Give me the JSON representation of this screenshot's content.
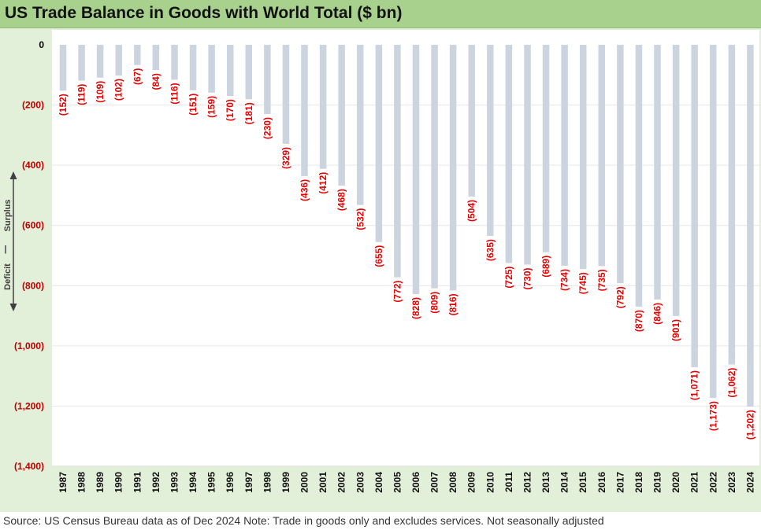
{
  "title": "US Trade Balance in Goods with World Total ($ bn)",
  "source": "Source: US Census Bureau data as of Dec 2024 Note: Trade in goods only and excludes services. Not seasonally adjusted",
  "colors": {
    "title_band": "#a9d18e",
    "panel": "#e2efd9",
    "bar": "#ccd5df",
    "label": "#e60000",
    "tick_label": "#c00000",
    "zero_label": "#000000",
    "gridline": "#e6e6e6"
  },
  "annotation": {
    "top": "Surplus",
    "bottom": "Deficit",
    "separator": "|"
  },
  "chart_data": {
    "type": "bar",
    "title": "US Trade Balance in Goods with World Total ($ bn)",
    "xlabel": "",
    "ylabel": "",
    "ylim": [
      -1400,
      0
    ],
    "yticks": [
      0,
      -200,
      -400,
      -600,
      -800,
      -1000,
      -1200,
      -1400
    ],
    "ytick_labels": [
      "0",
      "(200)",
      "(400)",
      "(600)",
      "(800)",
      "(1,000)",
      "(1,200)",
      "(1,400)"
    ],
    "grid": true,
    "legend": "none",
    "categories": [
      "1987",
      "1988",
      "1989",
      "1990",
      "1991",
      "1992",
      "1993",
      "1994",
      "1995",
      "1996",
      "1997",
      "1998",
      "1999",
      "2000",
      "2001",
      "2002",
      "2003",
      "2004",
      "2005",
      "2006",
      "2007",
      "2008",
      "2009",
      "2010",
      "2011",
      "2012",
      "2013",
      "2014",
      "2015",
      "2016",
      "2017",
      "2018",
      "2019",
      "2020",
      "2021",
      "2022",
      "2023",
      "2024"
    ],
    "values": [
      -152,
      -119,
      -109,
      -102,
      -67,
      -84,
      -116,
      -151,
      -159,
      -170,
      -181,
      -230,
      -329,
      -436,
      -412,
      -468,
      -532,
      -655,
      -772,
      -828,
      -809,
      -816,
      -504,
      -635,
      -725,
      -730,
      -689,
      -734,
      -745,
      -735,
      -792,
      -870,
      -846,
      -901,
      -1071,
      -1173,
      -1062,
      -1202
    ],
    "data_labels": [
      "(152)",
      "(119)",
      "(109)",
      "(102)",
      "(67)",
      "(84)",
      "(116)",
      "(151)",
      "(159)",
      "(170)",
      "(181)",
      "(230)",
      "(329)",
      "(436)",
      "(412)",
      "(468)",
      "(532)",
      "(655)",
      "(772)",
      "(828)",
      "(809)",
      "(816)",
      "(504)",
      "(635)",
      "(725)",
      "(730)",
      "(689)",
      "(734)",
      "(745)",
      "(735)",
      "(792)",
      "(870)",
      "(846)",
      "(901)",
      "(1,071)",
      "(1,173)",
      "(1,062)",
      "(1,202)"
    ]
  }
}
